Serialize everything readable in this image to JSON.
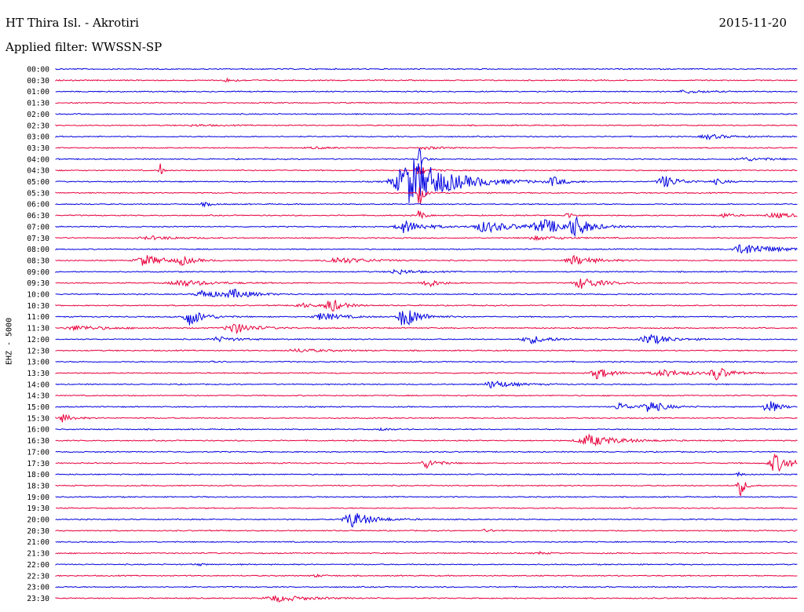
{
  "header": {
    "station": "HT Thira Isl. - Akrotiri",
    "date": "2015-11-20",
    "filter": "Applied filter: WWSSN-SP"
  },
  "colors": {
    "trace_blue": "#0000e0",
    "trace_red": "#e8003c",
    "text": "#000000",
    "background": "#ffffff"
  },
  "chart_data": {
    "type": "line",
    "title": "HT Thira Isl. - Akrotiri",
    "ylabel": "EHZ - 5000",
    "xlabel": "",
    "grid": false,
    "legend": "none",
    "color_cycle": [
      "blue",
      "red"
    ],
    "rows": [
      {
        "label": "00:00",
        "events": []
      },
      {
        "label": "00:30",
        "events": [
          {
            "t": 0.23,
            "amp": 2,
            "width": 0.012
          }
        ]
      },
      {
        "label": "01:00",
        "events": [
          {
            "t": 0.85,
            "amp": 2,
            "width": 0.02
          }
        ]
      },
      {
        "label": "01:30",
        "events": []
      },
      {
        "label": "02:00",
        "events": []
      },
      {
        "label": "02:30",
        "events": [
          {
            "t": 0.19,
            "amp": 1,
            "width": 0.02
          }
        ]
      },
      {
        "label": "03:00",
        "events": [
          {
            "t": 0.88,
            "amp": 3,
            "width": 0.02
          }
        ]
      },
      {
        "label": "03:30",
        "events": [
          {
            "t": 0.35,
            "amp": 1,
            "width": 0.02
          },
          {
            "t": 0.5,
            "amp": 1.5,
            "width": 0.02
          }
        ]
      },
      {
        "label": "04:00",
        "events": [
          {
            "t": 0.49,
            "amp": 14,
            "width": 0.004
          },
          {
            "t": 0.93,
            "amp": 2,
            "width": 0.03
          }
        ]
      },
      {
        "label": "04:30",
        "events": [
          {
            "t": 0.14,
            "amp": 14,
            "width": 0.002
          },
          {
            "t": 0.49,
            "amp": 6,
            "width": 0.01
          }
        ]
      },
      {
        "label": "05:00",
        "events": [
          {
            "t": 0.48,
            "amp": 30,
            "width": 0.04
          },
          {
            "t": 0.67,
            "amp": 6,
            "width": 0.01
          },
          {
            "t": 0.82,
            "amp": 8,
            "width": 0.015
          },
          {
            "t": 0.89,
            "amp": 3,
            "width": 0.012
          }
        ]
      },
      {
        "label": "05:30",
        "events": [
          {
            "t": 0.49,
            "amp": 18,
            "width": 0.004
          }
        ]
      },
      {
        "label": "06:00",
        "events": [
          {
            "t": 0.2,
            "amp": 2,
            "width": 0.01
          }
        ]
      },
      {
        "label": "06:30",
        "events": [
          {
            "t": 0.49,
            "amp": 10,
            "width": 0.004
          },
          {
            "t": 0.69,
            "amp": 5,
            "width": 0.005
          },
          {
            "t": 0.9,
            "amp": 3,
            "width": 0.01
          },
          {
            "t": 0.97,
            "amp": 3,
            "width": 0.025
          }
        ]
      },
      {
        "label": "07:00",
        "events": [
          {
            "t": 0.47,
            "amp": 8,
            "width": 0.02
          },
          {
            "t": 0.58,
            "amp": 7,
            "width": 0.03
          },
          {
            "t": 0.66,
            "amp": 8,
            "width": 0.03
          },
          {
            "t": 0.7,
            "amp": 12,
            "width": 0.012
          }
        ]
      },
      {
        "label": "07:30",
        "events": [
          {
            "t": 0.13,
            "amp": 2,
            "width": 0.03
          },
          {
            "t": 0.65,
            "amp": 2,
            "width": 0.03
          }
        ]
      },
      {
        "label": "08:00",
        "events": [
          {
            "t": 0.93,
            "amp": 7,
            "width": 0.03
          }
        ]
      },
      {
        "label": "08:30",
        "events": [
          {
            "t": 0.12,
            "amp": 7,
            "width": 0.02
          },
          {
            "t": 0.17,
            "amp": 5,
            "width": 0.012
          },
          {
            "t": 0.38,
            "amp": 4,
            "width": 0.03
          },
          {
            "t": 0.7,
            "amp": 6,
            "width": 0.02
          }
        ]
      },
      {
        "label": "09:00",
        "events": [
          {
            "t": 0.46,
            "amp": 3,
            "width": 0.02
          }
        ]
      },
      {
        "label": "09:30",
        "events": [
          {
            "t": 0.17,
            "amp": 4,
            "width": 0.03
          },
          {
            "t": 0.5,
            "amp": 6,
            "width": 0.012
          },
          {
            "t": 0.71,
            "amp": 7,
            "width": 0.02
          }
        ]
      },
      {
        "label": "10:00",
        "events": [
          {
            "t": 0.2,
            "amp": 5,
            "width": 0.02
          },
          {
            "t": 0.24,
            "amp": 5,
            "width": 0.02
          }
        ]
      },
      {
        "label": "10:30",
        "events": [
          {
            "t": 0.33,
            "amp": 3,
            "width": 0.015
          },
          {
            "t": 0.37,
            "amp": 9,
            "width": 0.012
          }
        ]
      },
      {
        "label": "11:00",
        "events": [
          {
            "t": 0.18,
            "amp": 11,
            "width": 0.015
          },
          {
            "t": 0.36,
            "amp": 5,
            "width": 0.02
          },
          {
            "t": 0.47,
            "amp": 14,
            "width": 0.015
          }
        ]
      },
      {
        "label": "11:30",
        "events": [
          {
            "t": 0.03,
            "amp": 3,
            "width": 0.03
          },
          {
            "t": 0.24,
            "amp": 7,
            "width": 0.02
          }
        ]
      },
      {
        "label": "12:00",
        "events": [
          {
            "t": 0.22,
            "amp": 3,
            "width": 0.02
          },
          {
            "t": 0.64,
            "amp": 5,
            "width": 0.02
          },
          {
            "t": 0.8,
            "amp": 7,
            "width": 0.02
          }
        ]
      },
      {
        "label": "12:30",
        "events": [
          {
            "t": 0.33,
            "amp": 2,
            "width": 0.03
          }
        ]
      },
      {
        "label": "13:00",
        "events": [
          {
            "t": 0.21,
            "amp": 3,
            "width": 0.006
          }
        ]
      },
      {
        "label": "13:30",
        "events": [
          {
            "t": 0.73,
            "amp": 7,
            "width": 0.015
          },
          {
            "t": 0.82,
            "amp": 4,
            "width": 0.03
          },
          {
            "t": 0.89,
            "amp": 9,
            "width": 0.012
          }
        ]
      },
      {
        "label": "14:00",
        "events": [
          {
            "t": 0.59,
            "amp": 5,
            "width": 0.02
          }
        ]
      },
      {
        "label": "14:30",
        "events": []
      },
      {
        "label": "15:00",
        "events": [
          {
            "t": 0.76,
            "amp": 5,
            "width": 0.012
          },
          {
            "t": 0.8,
            "amp": 8,
            "width": 0.015
          },
          {
            "t": 0.96,
            "amp": 10,
            "width": 0.01
          }
        ]
      },
      {
        "label": "15:30",
        "events": [
          {
            "t": 0.01,
            "amp": 5,
            "width": 0.01
          }
        ]
      },
      {
        "label": "16:00",
        "events": [
          {
            "t": 0.44,
            "amp": 2,
            "width": 0.008
          }
        ]
      },
      {
        "label": "16:30",
        "events": [
          {
            "t": 0.72,
            "amp": 7,
            "width": 0.03
          }
        ]
      },
      {
        "label": "17:00",
        "events": []
      },
      {
        "label": "17:30",
        "events": [
          {
            "t": 0.5,
            "amp": 6,
            "width": 0.012
          },
          {
            "t": 0.97,
            "amp": 12,
            "width": 0.015
          }
        ]
      },
      {
        "label": "18:00",
        "events": [
          {
            "t": 0.92,
            "amp": 3,
            "width": 0.004
          }
        ]
      },
      {
        "label": "18:30",
        "events": [
          {
            "t": 0.92,
            "amp": 20,
            "width": 0.005
          }
        ]
      },
      {
        "label": "19:00",
        "events": []
      },
      {
        "label": "19:30",
        "events": []
      },
      {
        "label": "20:00",
        "events": [
          {
            "t": 0.4,
            "amp": 10,
            "width": 0.02
          }
        ]
      },
      {
        "label": "20:30",
        "events": [
          {
            "t": 0.58,
            "amp": 1.5,
            "width": 0.01
          }
        ]
      },
      {
        "label": "21:00",
        "events": []
      },
      {
        "label": "21:30",
        "events": [
          {
            "t": 0.65,
            "amp": 1.5,
            "width": 0.01
          }
        ]
      },
      {
        "label": "22:00",
        "events": [
          {
            "t": 0.19,
            "amp": 2,
            "width": 0.006
          }
        ]
      },
      {
        "label": "22:30",
        "events": [
          {
            "t": 0.35,
            "amp": 1.5,
            "width": 0.01
          }
        ]
      },
      {
        "label": "23:00",
        "events": []
      },
      {
        "label": "23:30",
        "events": [
          {
            "t": 0.3,
            "amp": 4,
            "width": 0.03
          }
        ]
      }
    ]
  }
}
